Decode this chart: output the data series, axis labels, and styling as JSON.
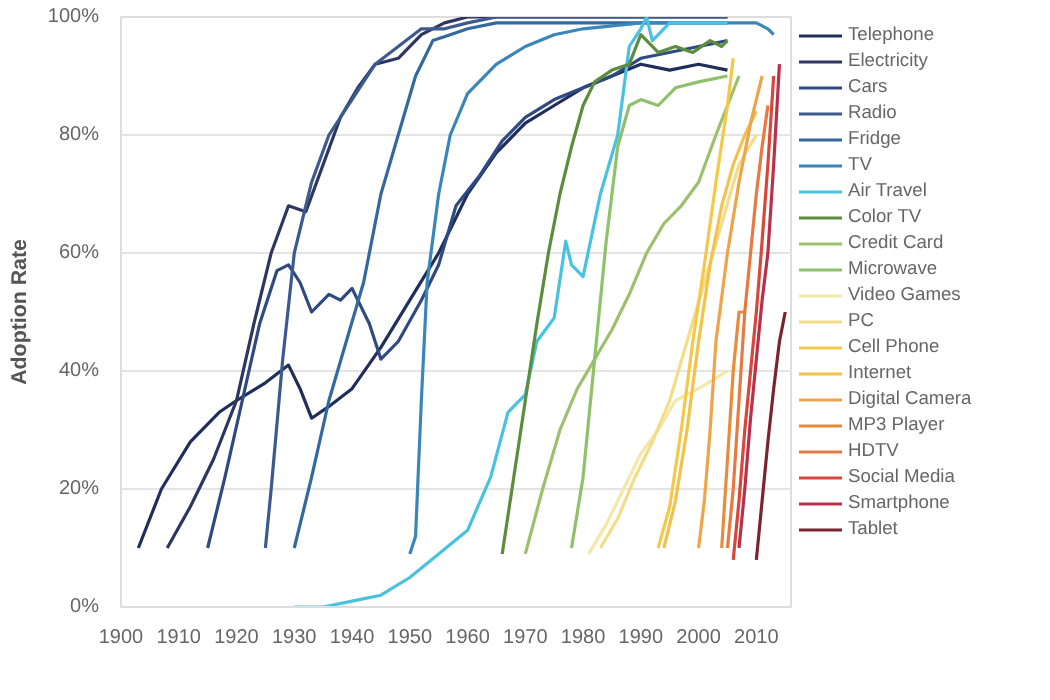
{
  "chart_data": {
    "type": "line",
    "ylabel": "Adoption Rate",
    "xlim": [
      1900,
      2016
    ],
    "xticks": [
      1900,
      1910,
      1920,
      1930,
      1940,
      1950,
      1960,
      1970,
      1980,
      1990,
      2000,
      2010
    ],
    "ylim": [
      0,
      100
    ],
    "yticks": [
      {
        "value": 0,
        "label": "0%"
      },
      {
        "value": 20,
        "label": "20%"
      },
      {
        "value": 40,
        "label": "40%"
      },
      {
        "value": 60,
        "label": "60%"
      },
      {
        "value": 80,
        "label": "80%"
      },
      {
        "value": 100,
        "label": "100%"
      }
    ],
    "grid": "y",
    "legend": "right",
    "line_style": "solid",
    "series": [
      {
        "name": "Telephone",
        "color": "#1f2e5a",
        "x": [
          1903,
          1907,
          1912,
          1917,
          1920,
          1925,
          1929,
          1931,
          1933,
          1936,
          1940,
          1945,
          1950,
          1955,
          1960,
          1965,
          1970,
          1975,
          1980,
          1985,
          1990,
          1995,
          2000,
          2005
        ],
        "values": [
          10,
          20,
          28,
          33,
          35,
          38,
          41,
          37,
          32,
          34,
          37,
          44,
          52,
          60,
          70,
          77,
          82,
          85,
          88,
          90,
          92,
          91,
          92,
          91
        ]
      },
      {
        "name": "Electricity",
        "color": "#2e3560",
        "x": [
          1908,
          1912,
          1916,
          1920,
          1923,
          1926,
          1929,
          1932,
          1935,
          1938,
          1941,
          1944,
          1948,
          1952,
          1956,
          1960,
          2005
        ],
        "values": [
          10,
          17,
          25,
          35,
          48,
          60,
          68,
          67,
          75,
          83,
          88,
          92,
          93,
          97,
          99,
          100,
          100
        ]
      },
      {
        "name": "Cars",
        "color": "#2f4a80",
        "x": [
          1915,
          1918,
          1921,
          1924,
          1927,
          1929,
          1931,
          1933,
          1936,
          1938,
          1940,
          1943,
          1945,
          1948,
          1952,
          1955,
          1958,
          1962,
          1966,
          1970,
          1975,
          1980,
          1985,
          1990,
          2000,
          2005
        ],
        "values": [
          10,
          22,
          35,
          48,
          57,
          58,
          55,
          50,
          53,
          52,
          54,
          48,
          42,
          45,
          52,
          58,
          68,
          73,
          79,
          83,
          86,
          88,
          90,
          93,
          95,
          96
        ]
      },
      {
        "name": "Radio",
        "color": "#3c5a8e",
        "x": [
          1925,
          1926,
          1928,
          1930,
          1933,
          1936,
          1940,
          1944,
          1948,
          1952,
          1956,
          1960,
          1965,
          2005
        ],
        "values": [
          10,
          20,
          42,
          60,
          72,
          80,
          86,
          92,
          95,
          98,
          98,
          99,
          100,
          100
        ]
      },
      {
        "name": "Fridge",
        "color": "#34699e",
        "x": [
          1930,
          1933,
          1936,
          1939,
          1942,
          1945,
          1948,
          1951,
          1954,
          1957,
          1960,
          1965,
          2005
        ],
        "values": [
          10,
          22,
          35,
          45,
          55,
          70,
          80,
          90,
          96,
          97,
          98,
          99,
          99
        ]
      },
      {
        "name": "TV",
        "color": "#3a86b8",
        "x": [
          1950,
          1951,
          1952,
          1953,
          1955,
          1957,
          1960,
          1965,
          1970,
          1975,
          1980,
          1990,
          2000,
          2005,
          2010,
          2012,
          2013
        ],
        "values": [
          9,
          12,
          35,
          55,
          70,
          80,
          87,
          92,
          95,
          97,
          98,
          99,
          99,
          99,
          99,
          98,
          97
        ]
      },
      {
        "name": "Air Travel",
        "color": "#49c1e0",
        "x": [
          1930,
          1935,
          1940,
          1945,
          1950,
          1955,
          1960,
          1964,
          1967,
          1970,
          1972,
          1975,
          1977,
          1978,
          1980,
          1983,
          1986,
          1988,
          1990,
          1991,
          1992,
          1995,
          2000,
          2005
        ],
        "values": [
          0,
          0,
          1,
          2,
          5,
          9,
          13,
          22,
          33,
          36,
          45,
          49,
          62,
          58,
          56,
          70,
          80,
          95,
          98,
          100,
          96,
          99,
          99,
          99
        ]
      },
      {
        "name": "Color TV",
        "color": "#5c8d3c",
        "x": [
          1966,
          1968,
          1970,
          1972,
          1974,
          1976,
          1978,
          1980,
          1982,
          1985,
          1988,
          1990,
          1993,
          1996,
          1999,
          2002,
          2004,
          2005
        ],
        "values": [
          9,
          22,
          35,
          48,
          60,
          70,
          78,
          85,
          89,
          91,
          92,
          97,
          94,
          95,
          94,
          96,
          95,
          96
        ]
      },
      {
        "name": "Credit Card",
        "color": "#9cc06c",
        "x": [
          1970,
          1973,
          1976,
          1979,
          1982,
          1985,
          1988,
          1991,
          1994,
          1997,
          2000,
          2003,
          2007
        ],
        "values": [
          9,
          20,
          30,
          37,
          42,
          47,
          53,
          60,
          65,
          68,
          72,
          80,
          90
        ]
      },
      {
        "name": "Microwave",
        "color": "#8fc06a",
        "x": [
          1978,
          1980,
          1982,
          1984,
          1986,
          1988,
          1990,
          1993,
          1996,
          2000,
          2005
        ],
        "values": [
          10,
          22,
          42,
          62,
          78,
          85,
          86,
          85,
          88,
          89,
          90
        ]
      },
      {
        "name": "Video Games",
        "color": "#f5e7a8",
        "x": [
          1981,
          1984,
          1987,
          1990,
          1993,
          1996,
          2000,
          2005
        ],
        "values": [
          9,
          14,
          20,
          26,
          30,
          35,
          37,
          40
        ]
      },
      {
        "name": "PC",
        "color": "#f3dd86",
        "x": [
          1983,
          1986,
          1989,
          1992,
          1995,
          1998,
          2001,
          2004,
          2007,
          2010
        ],
        "values": [
          10,
          15,
          22,
          28,
          35,
          45,
          55,
          65,
          75,
          80
        ]
      },
      {
        "name": "Cell Phone",
        "color": "#f3c94a",
        "x": [
          1993,
          1995,
          1997,
          1999,
          2001,
          2003,
          2005,
          2006
        ],
        "values": [
          10,
          17,
          30,
          45,
          58,
          72,
          85,
          93
        ]
      },
      {
        "name": "Internet",
        "color": "#f2c24c",
        "x": [
          1994,
          1996,
          1998,
          2000,
          2002,
          2004,
          2006,
          2008,
          2010
        ],
        "values": [
          10,
          18,
          30,
          45,
          58,
          68,
          75,
          80,
          84
        ]
      },
      {
        "name": "Digital Camera",
        "color": "#eda44a",
        "x": [
          2000,
          2001,
          2002,
          2003,
          2005,
          2007,
          2009,
          2011
        ],
        "values": [
          10,
          18,
          30,
          45,
          60,
          72,
          82,
          90
        ]
      },
      {
        "name": "MP3 Player",
        "color": "#e88c3c",
        "x": [
          2004,
          2005,
          2006,
          2007,
          2008
        ],
        "values": [
          10,
          25,
          40,
          50,
          50
        ]
      },
      {
        "name": "HDTV",
        "color": "#e67a44",
        "x": [
          2005,
          2006,
          2007,
          2008,
          2009,
          2010,
          2011,
          2012
        ],
        "values": [
          10,
          20,
          35,
          50,
          60,
          70,
          78,
          85
        ]
      },
      {
        "name": "Social Media",
        "color": "#d9473c",
        "x": [
          2006,
          2007,
          2008,
          2009,
          2010,
          2011,
          2012,
          2013
        ],
        "values": [
          8,
          18,
          30,
          40,
          50,
          62,
          75,
          90
        ]
      },
      {
        "name": "Smartphone",
        "color": "#b8304a",
        "x": [
          2007,
          2008,
          2009,
          2010,
          2011,
          2012,
          2013,
          2014
        ],
        "values": [
          10,
          20,
          32,
          42,
          52,
          60,
          75,
          92
        ]
      },
      {
        "name": "Tablet",
        "color": "#7a2430",
        "x": [
          2010,
          2011,
          2012,
          2013,
          2014,
          2015
        ],
        "values": [
          8,
          18,
          28,
          37,
          45,
          50
        ]
      }
    ]
  }
}
